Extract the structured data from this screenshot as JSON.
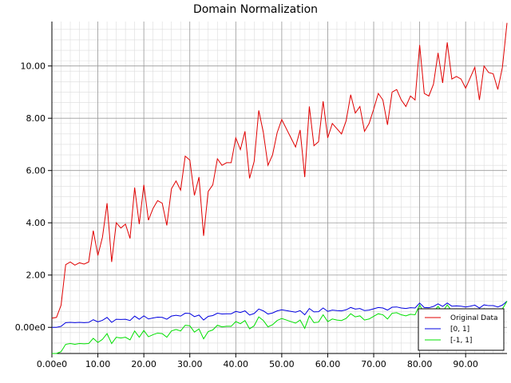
{
  "chart_data": {
    "type": "line",
    "title": "Domain Normalization",
    "xlabel": "",
    "ylabel": "",
    "xlim": [
      0,
      99
    ],
    "ylim": [
      -1.0,
      11.7
    ],
    "x_ticks": [
      "0.00e0",
      "10.00",
      "20.00",
      "30.00",
      "40.00",
      "50.00",
      "60.00",
      "70.00",
      "80.00",
      "90.00"
    ],
    "y_ticks": [
      "0.00e0",
      "2.00",
      "4.00",
      "6.00",
      "8.00",
      "10.00"
    ],
    "grid": true,
    "legend_position": "bottom-right",
    "series": [
      {
        "name": "Original Data",
        "color": "#e00000",
        "values": [
          0.35,
          0.38,
          0.85,
          2.4,
          2.5,
          2.38,
          2.47,
          2.42,
          2.5,
          3.7,
          2.75,
          3.45,
          4.75,
          2.5,
          4.0,
          3.8,
          3.95,
          3.4,
          5.35,
          3.95,
          5.45,
          4.1,
          4.55,
          4.85,
          4.75,
          3.9,
          5.3,
          5.6,
          5.25,
          6.55,
          6.4,
          5.05,
          5.75,
          3.5,
          5.2,
          5.45,
          6.45,
          6.2,
          6.3,
          6.3,
          7.25,
          6.8,
          7.5,
          5.7,
          6.35,
          8.3,
          7.45,
          6.2,
          6.6,
          7.45,
          7.95,
          7.6,
          7.25,
          6.9,
          7.55,
          5.75,
          8.45,
          6.95,
          7.1,
          8.65,
          7.25,
          7.8,
          7.6,
          7.4,
          7.9,
          8.9,
          8.2,
          8.45,
          7.5,
          7.8,
          8.35,
          8.95,
          8.7,
          7.75,
          9.0,
          9.1,
          8.7,
          8.45,
          8.85,
          8.7,
          10.8,
          8.95,
          8.85,
          9.3,
          10.5,
          9.35,
          10.9,
          9.5,
          9.6,
          9.5,
          9.15,
          9.55,
          9.95,
          8.7,
          10.0,
          9.75,
          9.7,
          9.1,
          9.95,
          11.65
        ]
      },
      {
        "name": "[0, 1]",
        "color": "#0000e0",
        "values": [
          0.0,
          0.0,
          0.04,
          0.18,
          0.19,
          0.18,
          0.19,
          0.18,
          0.19,
          0.29,
          0.21,
          0.27,
          0.38,
          0.19,
          0.31,
          0.3,
          0.31,
          0.26,
          0.43,
          0.31,
          0.44,
          0.32,
          0.36,
          0.39,
          0.38,
          0.31,
          0.43,
          0.46,
          0.43,
          0.54,
          0.53,
          0.41,
          0.47,
          0.28,
          0.42,
          0.45,
          0.54,
          0.51,
          0.52,
          0.52,
          0.61,
          0.57,
          0.63,
          0.47,
          0.53,
          0.7,
          0.63,
          0.51,
          0.55,
          0.63,
          0.67,
          0.64,
          0.61,
          0.58,
          0.64,
          0.48,
          0.72,
          0.59,
          0.6,
          0.74,
          0.61,
          0.66,
          0.64,
          0.63,
          0.67,
          0.76,
          0.7,
          0.72,
          0.64,
          0.66,
          0.71,
          0.76,
          0.74,
          0.66,
          0.77,
          0.78,
          0.74,
          0.72,
          0.75,
          0.74,
          0.93,
          0.76,
          0.75,
          0.8,
          0.9,
          0.8,
          0.93,
          0.81,
          0.82,
          0.81,
          0.78,
          0.81,
          0.85,
          0.74,
          0.86,
          0.83,
          0.83,
          0.78,
          0.85,
          1.0
        ]
      },
      {
        "name": "[-1, 1]",
        "color": "#00e000",
        "values": [
          -1.0,
          -1.0,
          -0.93,
          -0.65,
          -0.62,
          -0.65,
          -0.62,
          -0.63,
          -0.62,
          -0.42,
          -0.58,
          -0.46,
          -0.24,
          -0.62,
          -0.38,
          -0.41,
          -0.38,
          -0.48,
          -0.14,
          -0.38,
          -0.12,
          -0.36,
          -0.28,
          -0.22,
          -0.24,
          -0.38,
          -0.14,
          -0.08,
          -0.14,
          0.08,
          0.06,
          -0.18,
          -0.06,
          -0.44,
          -0.16,
          -0.1,
          0.08,
          0.02,
          0.04,
          0.04,
          0.22,
          0.14,
          0.26,
          -0.06,
          0.06,
          0.4,
          0.26,
          0.02,
          0.1,
          0.26,
          0.34,
          0.28,
          0.22,
          0.16,
          0.28,
          -0.04,
          0.44,
          0.18,
          0.2,
          0.48,
          0.22,
          0.32,
          0.28,
          0.26,
          0.34,
          0.52,
          0.4,
          0.44,
          0.28,
          0.32,
          0.42,
          0.52,
          0.48,
          0.32,
          0.54,
          0.56,
          0.48,
          0.44,
          0.5,
          0.48,
          0.86,
          0.52,
          0.5,
          0.6,
          0.8,
          0.6,
          0.86,
          0.62,
          0.64,
          0.62,
          0.56,
          0.62,
          0.7,
          0.48,
          0.72,
          0.66,
          0.66,
          0.56,
          0.7,
          1.0
        ]
      }
    ]
  }
}
